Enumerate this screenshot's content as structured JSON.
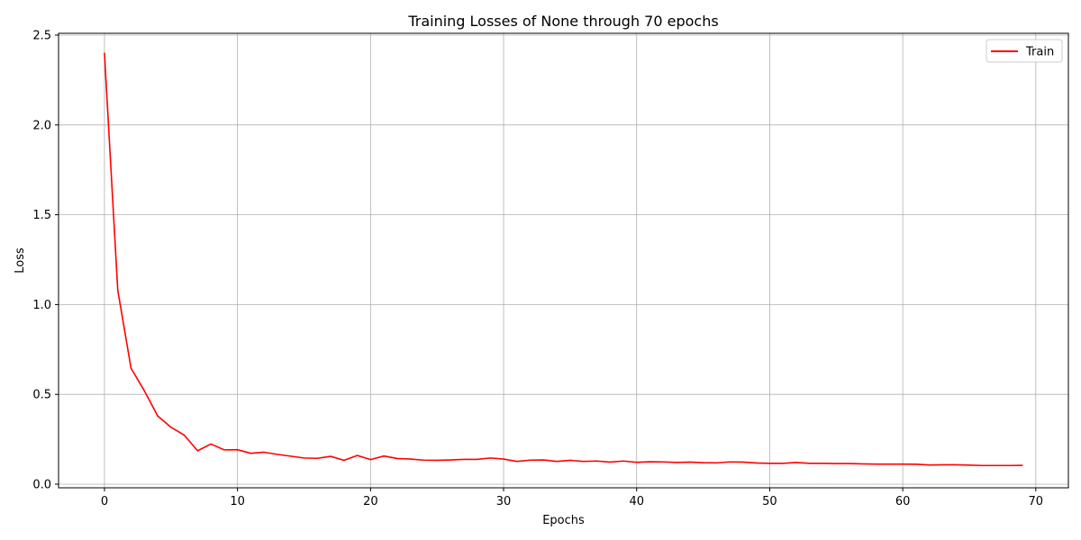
{
  "chart_data": {
    "type": "line",
    "title": "Training Losses of None through 70 epochs",
    "xlabel": "Epochs",
    "ylabel": "Loss",
    "xlim": [
      -3.45,
      72.45
    ],
    "ylim": [
      -0.02,
      2.51
    ],
    "xticks": [
      0,
      10,
      20,
      30,
      40,
      50,
      60,
      70
    ],
    "xtick_labels": [
      "0",
      "10",
      "20",
      "30",
      "40",
      "50",
      "60",
      "70"
    ],
    "yticks": [
      0.0,
      0.5,
      1.0,
      1.5,
      2.0,
      2.5
    ],
    "ytick_labels": [
      "0.0",
      "0.5",
      "1.0",
      "1.5",
      "2.0",
      "2.5"
    ],
    "grid": true,
    "legend_position": "top-right",
    "series": [
      {
        "name": "Train",
        "color": "#ff0000",
        "x": [
          0,
          1,
          2,
          3,
          4,
          5,
          6,
          7,
          8,
          9,
          10,
          11,
          12,
          13,
          14,
          15,
          16,
          17,
          18,
          19,
          20,
          21,
          22,
          23,
          24,
          25,
          26,
          27,
          28,
          29,
          30,
          31,
          32,
          33,
          34,
          35,
          36,
          37,
          38,
          39,
          40,
          41,
          42,
          43,
          44,
          45,
          46,
          47,
          48,
          49,
          50,
          51,
          52,
          53,
          54,
          55,
          56,
          57,
          58,
          59,
          60,
          61,
          62,
          63,
          64,
          65,
          66,
          67,
          68,
          69
        ],
        "values": [
          2.4,
          1.08,
          0.645,
          0.52,
          0.38,
          0.317,
          0.273,
          0.186,
          0.224,
          0.191,
          0.192,
          0.172,
          0.178,
          0.166,
          0.156,
          0.146,
          0.144,
          0.155,
          0.133,
          0.16,
          0.137,
          0.157,
          0.143,
          0.14,
          0.134,
          0.133,
          0.135,
          0.138,
          0.138,
          0.146,
          0.14,
          0.127,
          0.134,
          0.135,
          0.127,
          0.133,
          0.127,
          0.129,
          0.123,
          0.129,
          0.122,
          0.125,
          0.124,
          0.121,
          0.123,
          0.12,
          0.119,
          0.124,
          0.123,
          0.118,
          0.116,
          0.116,
          0.121,
          0.116,
          0.116,
          0.115,
          0.115,
          0.113,
          0.112,
          0.112,
          0.112,
          0.111,
          0.107,
          0.108,
          0.108,
          0.106,
          0.104,
          0.104,
          0.104,
          0.105
        ]
      }
    ]
  }
}
